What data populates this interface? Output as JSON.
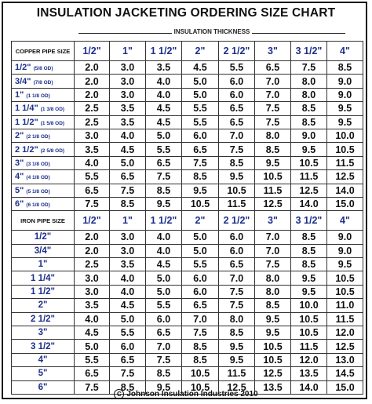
{
  "title": "INSULATION JACKETING ORDERING SIZE CHART",
  "thickness_label": "INSULATION THICKNESS",
  "thickness_sizes": [
    "1/2\"",
    "1\"",
    "1 1/2\"",
    "2\"",
    "2 1/2\"",
    "3\"",
    "3 1/2\"",
    "4\""
  ],
  "copper": {
    "header": "COPPER PIPE SIZE",
    "rows": [
      {
        "size": "1/2\"",
        "od": "(5/8 OD)",
        "values": [
          "2.0",
          "3.0",
          "3.5",
          "4.5",
          "5.5",
          "6.5",
          "7.5",
          "8.5"
        ]
      },
      {
        "size": "3/4\"",
        "od": "(7/8 OD)",
        "values": [
          "2.0",
          "3.0",
          "4.0",
          "5.0",
          "6.0",
          "7.0",
          "8.0",
          "9.0"
        ]
      },
      {
        "size": "1\"",
        "od": "(1 1/8 OD)",
        "values": [
          "2.0",
          "3.0",
          "4.0",
          "5.0",
          "6.0",
          "7.0",
          "8.0",
          "9.0"
        ]
      },
      {
        "size": "1 1/4\"",
        "od": "(1 3/8 OD)",
        "values": [
          "2.5",
          "3.5",
          "4.5",
          "5.5",
          "6.5",
          "7.5",
          "8.5",
          "9.5"
        ]
      },
      {
        "size": "1 1/2\"",
        "od": "(1 5/8 OD)",
        "values": [
          "2.5",
          "3.5",
          "4.5",
          "5.5",
          "6.5",
          "7.5",
          "8.5",
          "9.5"
        ]
      },
      {
        "size": "2\"",
        "od": "(2 1/8 OD)",
        "values": [
          "3.0",
          "4.0",
          "5.0",
          "6.0",
          "7.0",
          "8.0",
          "9.0",
          "10.0"
        ]
      },
      {
        "size": "2 1/2\"",
        "od": "(2 5/8 OD)",
        "values": [
          "3.5",
          "4.5",
          "5.5",
          "6.5",
          "7.5",
          "8.5",
          "9.5",
          "10.5"
        ]
      },
      {
        "size": "3\"",
        "od": "(3 1/8 OD)",
        "values": [
          "4.0",
          "5.0",
          "6.5",
          "7.5",
          "8.5",
          "9.5",
          "10.5",
          "11.5"
        ]
      },
      {
        "size": "4\"",
        "od": "(4 1/8 OD)",
        "values": [
          "5.5",
          "6.5",
          "7.5",
          "8.5",
          "9.5",
          "10.5",
          "11.5",
          "12.5"
        ]
      },
      {
        "size": "5\"",
        "od": "(5 1/8 OD)",
        "values": [
          "6.5",
          "7.5",
          "8.5",
          "9.5",
          "10.5",
          "11.5",
          "12.5",
          "14.0"
        ]
      },
      {
        "size": "6\"",
        "od": "(6 1/8 OD)",
        "values": [
          "7.5",
          "8.5",
          "9.5",
          "10.5",
          "11.5",
          "12.5",
          "14.0",
          "15.0"
        ]
      }
    ]
  },
  "iron": {
    "header": "IRON PIPE SIZE",
    "rows": [
      {
        "size": "1/2\"",
        "values": [
          "2.0",
          "3.0",
          "4.0",
          "5.0",
          "6.0",
          "7.0",
          "8.5",
          "9.0"
        ]
      },
      {
        "size": "3/4\"",
        "values": [
          "2.0",
          "3.0",
          "4.0",
          "5.0",
          "6.0",
          "7.0",
          "8.5",
          "9.0"
        ]
      },
      {
        "size": "1\"",
        "values": [
          "2.5",
          "3.5",
          "4.5",
          "5.5",
          "6.5",
          "7.5",
          "8.5",
          "9.5"
        ]
      },
      {
        "size": "1 1/4\"",
        "values": [
          "3.0",
          "4.0",
          "5.0",
          "6.0",
          "7.0",
          "8.0",
          "9.5",
          "10.5"
        ]
      },
      {
        "size": "1 1/2\"",
        "values": [
          "3.0",
          "4.0",
          "5.0",
          "6.0",
          "7.5",
          "8.0",
          "9.5",
          "10.5"
        ]
      },
      {
        "size": "2\"",
        "values": [
          "3.5",
          "4.5",
          "5.5",
          "6.5",
          "7.5",
          "8.5",
          "10.0",
          "11.0"
        ]
      },
      {
        "size": "2 1/2\"",
        "values": [
          "4.0",
          "5.0",
          "6.0",
          "7.0",
          "8.0",
          "9.5",
          "10.5",
          "11.5"
        ]
      },
      {
        "size": "3\"",
        "values": [
          "4.5",
          "5.5",
          "6.5",
          "7.5",
          "8.5",
          "9.5",
          "10.5",
          "12.0"
        ]
      },
      {
        "size": "3 1/2\"",
        "values": [
          "5.0",
          "6.0",
          "7.0",
          "8.5",
          "9.5",
          "10.5",
          "11.5",
          "12.5"
        ]
      },
      {
        "size": "4\"",
        "values": [
          "5.5",
          "6.5",
          "7.5",
          "8.5",
          "9.5",
          "10.5",
          "12.0",
          "13.0"
        ]
      },
      {
        "size": "5\"",
        "values": [
          "6.5",
          "7.5",
          "8.5",
          "10.5",
          "11.5",
          "12.5",
          "13.5",
          "14.5"
        ]
      },
      {
        "size": "6\"",
        "values": [
          "7.5",
          "8.5",
          "9.5",
          "10.5",
          "12.5",
          "13.5",
          "14.0",
          "15.0"
        ]
      }
    ]
  },
  "footer": {
    "copyright_symbol": "C",
    "text": "Johnson Insulation Industries 2010"
  }
}
